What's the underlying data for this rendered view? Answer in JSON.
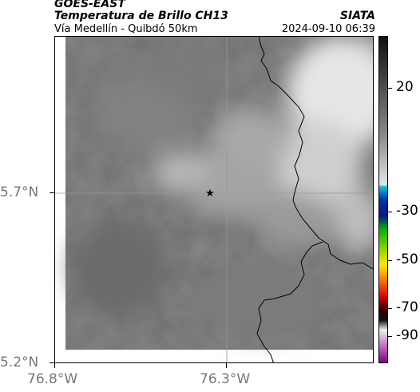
{
  "header": {
    "satellite": "GOES-EAST",
    "product": "Temperatura de Brillo CH13",
    "location": "Vía Medellín - Quibdó 50km",
    "agency": "SIATA",
    "timestamp": "2024-09-10 06:39"
  },
  "axes": {
    "y_ticks": [
      "5.7°N",
      "5.2°N"
    ],
    "x_ticks": [
      "76.8°W",
      "76.3°W"
    ]
  },
  "colorbar": {
    "ticks": [
      "20",
      "-30",
      "-50",
      "-70",
      "-90"
    ]
  },
  "map": {
    "marker": "★",
    "marker_name": "star-icon"
  }
}
